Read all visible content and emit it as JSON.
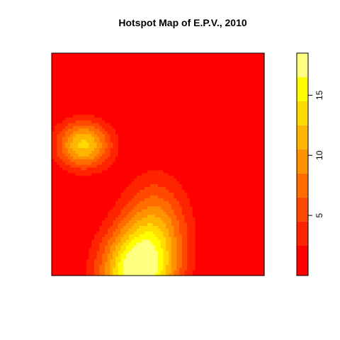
{
  "chart_data": {
    "type": "heatmap",
    "title": "Hotspot Map of E.P.V., 2010",
    "xlabel": "",
    "ylabel": "",
    "axes_shown": false,
    "value_range": [
      0,
      18.5
    ],
    "color_breaks": [
      0,
      2.5,
      4.5,
      6.5,
      8.5,
      10.5,
      12.5,
      14.5,
      16.5,
      18.5
    ],
    "colors": [
      "#FF0000",
      "#FF2400",
      "#FF4900",
      "#FF6D00",
      "#FF9200",
      "#FFB600",
      "#FFDB00",
      "#FFFF00",
      "#FFFF80"
    ],
    "legend": {
      "position": "right",
      "ticks": [
        {
          "value": 5,
          "label": "5"
        },
        {
          "value": 10,
          "label": "10"
        },
        {
          "value": 15,
          "label": "15"
        }
      ]
    },
    "grid_resolution": 80,
    "background_level": 0,
    "hotspots": [
      {
        "x": 0.15,
        "y": 0.59,
        "peak": 13.0,
        "sx": 0.09,
        "sy": 0.075
      },
      {
        "x": 0.4,
        "y": 0.01,
        "peak": 17.5,
        "sx": 0.12,
        "sy": 0.14
      },
      {
        "x": 0.49,
        "y": 0.22,
        "peak": 8.5,
        "sx": 0.11,
        "sy": 0.16
      }
    ]
  }
}
